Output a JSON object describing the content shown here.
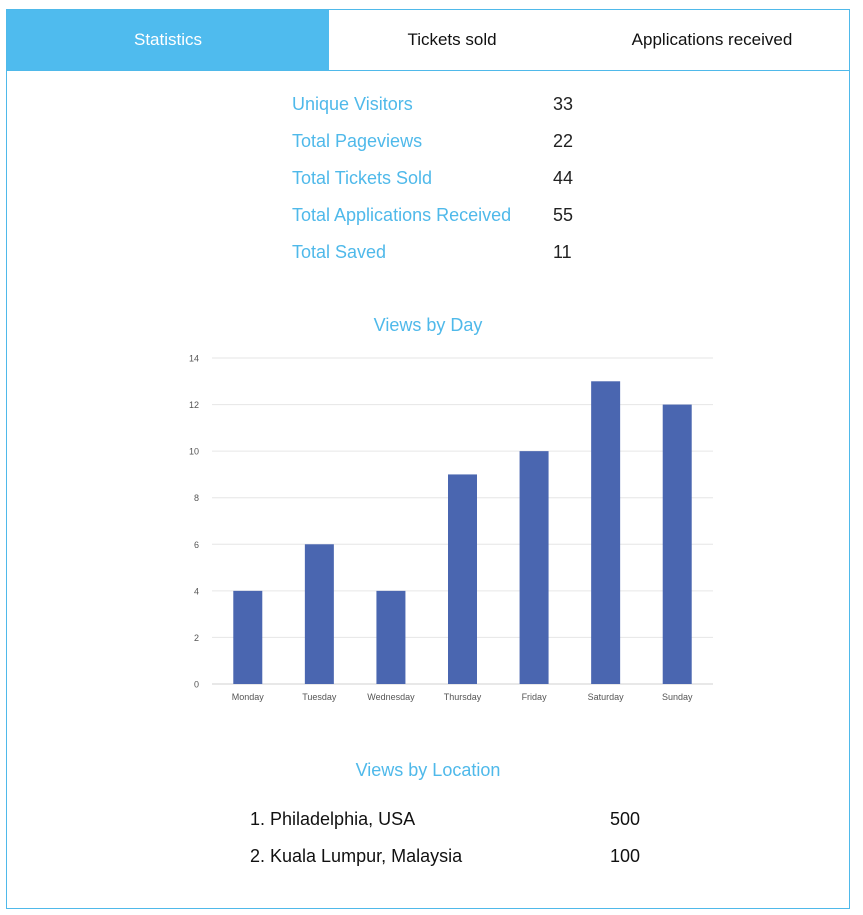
{
  "tabs": [
    {
      "label": "Statistics",
      "active": true
    },
    {
      "label": "Tickets sold",
      "active": false
    },
    {
      "label": "Applications received",
      "active": false
    }
  ],
  "stats": [
    {
      "label": "Unique Visitors",
      "value": "33"
    },
    {
      "label": "Total Pageviews",
      "value": "22"
    },
    {
      "label": "Total Tickets Sold",
      "value": "44"
    },
    {
      "label": "Total Applications Received",
      "value": "55"
    },
    {
      "label": "Total Saved",
      "value": "11"
    }
  ],
  "views_by_day": {
    "title": "Views by Day"
  },
  "views_by_location": {
    "title": "Views by Location",
    "items": [
      {
        "name": "1. Philadelphia, USA",
        "value": "500"
      },
      {
        "name": "2. Kuala Lumpur, Malaysia",
        "value": "100"
      }
    ]
  },
  "colors": {
    "accent": "#4fbbee",
    "bar": "#4a66b0"
  },
  "chart_data": {
    "type": "bar",
    "categories": [
      "Monday",
      "Tuesday",
      "Wednesday",
      "Thursday",
      "Friday",
      "Saturday",
      "Sunday"
    ],
    "values": [
      4,
      6,
      4,
      9,
      10,
      13,
      12
    ],
    "title": "Views by Day",
    "xlabel": "",
    "ylabel": "",
    "ylim": [
      0,
      14
    ],
    "yticks": [
      0,
      2,
      4,
      6,
      8,
      10,
      12,
      14
    ],
    "grid": true,
    "legend": "none"
  }
}
